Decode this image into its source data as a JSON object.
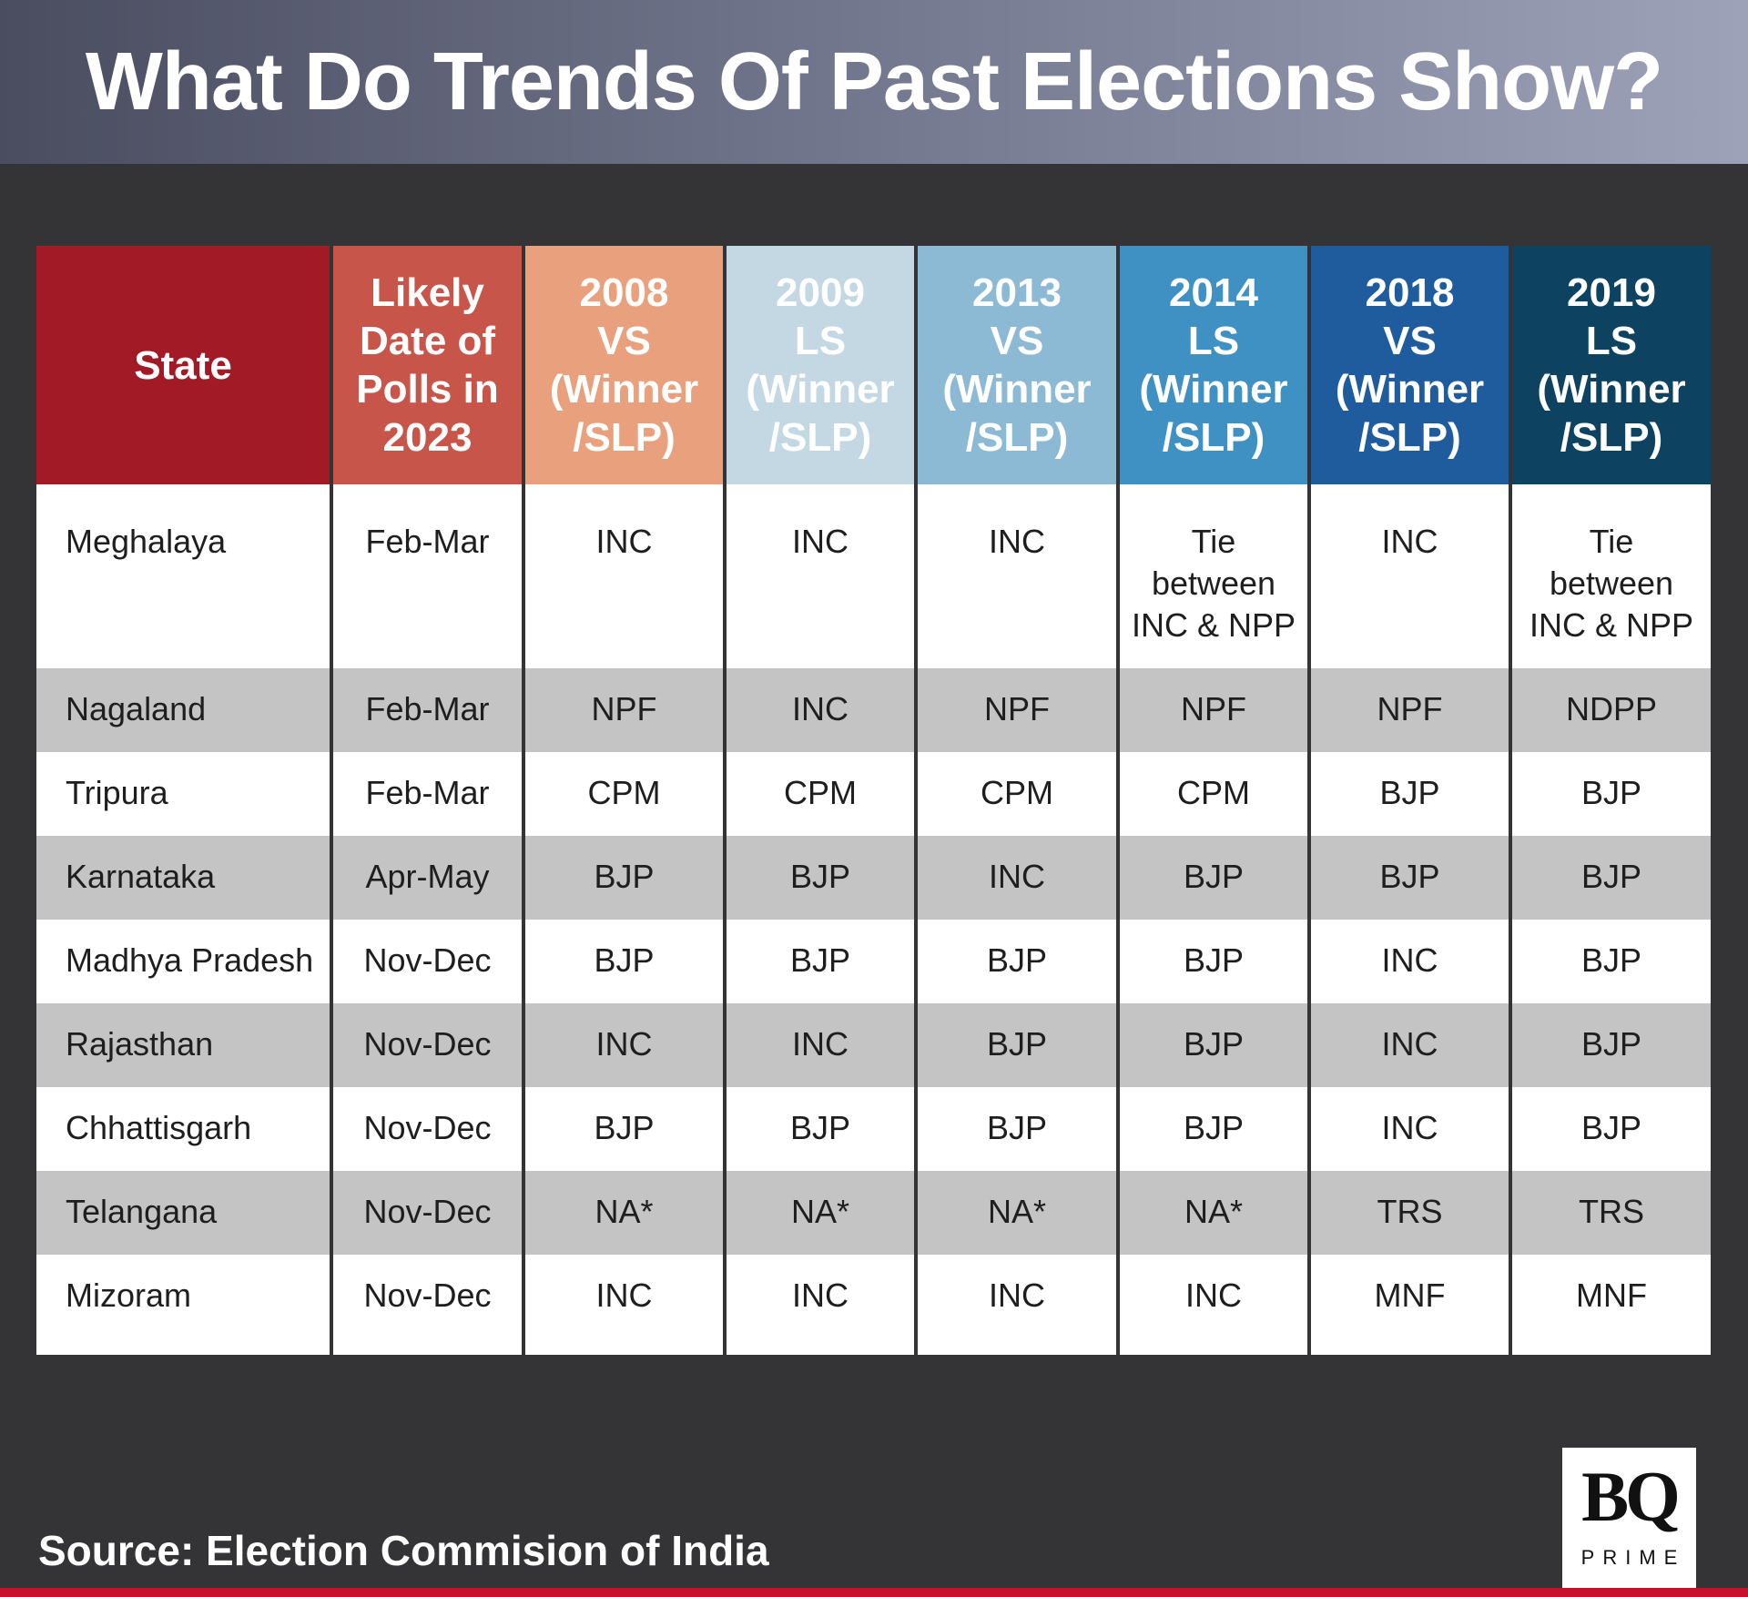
{
  "title": "What Do Trends Of Past Elections Show?",
  "colors": {
    "background": "#343436",
    "header": [
      "#a31a27",
      "#c8554a",
      "#e8a07d",
      "#c4d8e4",
      "#8cbad5",
      "#3f90c3",
      "#1e5c9e",
      "#0d4360"
    ],
    "row_alt": "#c4c4c4",
    "accent_strip": "#c8102e"
  },
  "chart_data": {
    "type": "table",
    "title": "What Do Trends Of Past Elections Show?",
    "columns": [
      "State",
      "Likely\nDate of\nPolls in\n2023",
      "2008\nVS\n(Winner\n/SLP)",
      "2009\nLS\n(Winner\n/SLP)",
      "2013\nVS\n(Winner\n/SLP)",
      "2014\nLS\n(Winner\n/SLP)",
      "2018\nVS\n(Winner\n/SLP)",
      "2019\nLS\n(Winner\n/SLP)"
    ],
    "rows": [
      [
        "Meghalaya",
        "Feb-Mar",
        "INC",
        "INC",
        "INC",
        "Tie\nbetween\nINC & NPP",
        "INC",
        "Tie\nbetween\nINC & NPP"
      ],
      [
        "Nagaland",
        "Feb-Mar",
        "NPF",
        "INC",
        "NPF",
        "NPF",
        "NPF",
        "NDPP"
      ],
      [
        "Tripura",
        "Feb-Mar",
        "CPM",
        "CPM",
        "CPM",
        "CPM",
        "BJP",
        "BJP"
      ],
      [
        "Karnataka",
        "Apr-May",
        "BJP",
        "BJP",
        "INC",
        "BJP",
        "BJP",
        "BJP"
      ],
      [
        "Madhya Pradesh",
        "Nov-Dec",
        "BJP",
        "BJP",
        "BJP",
        "BJP",
        "INC",
        "BJP"
      ],
      [
        "Rajasthan",
        "Nov-Dec",
        "INC",
        "INC",
        "BJP",
        "BJP",
        "INC",
        "BJP"
      ],
      [
        "Chhattisgarh",
        "Nov-Dec",
        "BJP",
        "BJP",
        "BJP",
        "BJP",
        "INC",
        "BJP"
      ],
      [
        "Telangana",
        "Nov-Dec",
        "NA*",
        "NA*",
        "NA*",
        "NA*",
        "TRS",
        "TRS"
      ],
      [
        "Mizoram",
        "Nov-Dec",
        "INC",
        "INC",
        "INC",
        "INC",
        "MNF",
        "MNF"
      ]
    ]
  },
  "source": "Source: Election Commision of India",
  "logo": {
    "mark": "BQ",
    "sub": "PRIME"
  }
}
